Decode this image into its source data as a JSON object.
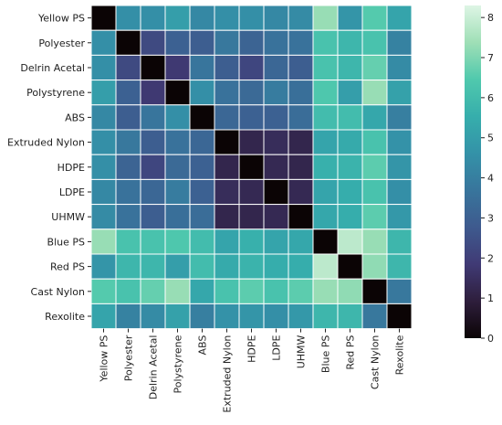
{
  "chart_data": {
    "type": "heatmap",
    "title": "",
    "row_labels": [
      "Yellow PS",
      "Polyester",
      "Delrin Acetal",
      "Polystyrene",
      "ABS",
      "Extruded Nylon",
      "HDPE",
      "LDPE",
      "UHMW",
      "Blue PS",
      "Red PS",
      "Cast Nylon",
      "Rexolite"
    ],
    "col_labels": [
      "Yellow PS",
      "Polyester",
      "Delrin Acetal",
      "Polystyrene",
      "ABS",
      "Extruded Nylon",
      "HDPE",
      "LDPE",
      "UHMW",
      "Blue PS",
      "Red PS",
      "Cast Nylon",
      "Rexolite"
    ],
    "values": [
      [
        0.0,
        4.5,
        4.5,
        5.0,
        4.3,
        4.5,
        4.5,
        4.3,
        4.4,
        7.3,
        4.7,
        6.5,
        5.2
      ],
      [
        4.5,
        0.0,
        2.3,
        3.0,
        2.9,
        3.8,
        3.1,
        3.6,
        3.6,
        6.2,
        5.8,
        6.2,
        4.1
      ],
      [
        4.5,
        2.3,
        0.0,
        1.8,
        3.7,
        2.9,
        2.2,
        3.2,
        2.9,
        6.2,
        5.8,
        6.7,
        4.4
      ],
      [
        5.0,
        3.0,
        1.8,
        0.0,
        4.5,
        3.6,
        3.3,
        3.9,
        3.5,
        6.4,
        5.0,
        7.3,
        5.1
      ],
      [
        4.3,
        2.9,
        3.7,
        4.5,
        0.0,
        3.2,
        3.0,
        3.0,
        3.4,
        6.0,
        6.0,
        5.3,
        4.0
      ],
      [
        4.5,
        3.8,
        2.9,
        3.6,
        3.2,
        0.0,
        1.2,
        1.4,
        1.2,
        5.2,
        5.4,
        6.2,
        4.6
      ],
      [
        4.5,
        3.1,
        2.2,
        3.3,
        3.0,
        1.2,
        0.0,
        1.3,
        1.2,
        5.6,
        5.7,
        6.6,
        4.7
      ],
      [
        4.3,
        3.6,
        3.2,
        3.9,
        3.0,
        1.4,
        1.3,
        0.0,
        1.3,
        5.2,
        5.5,
        6.2,
        4.5
      ],
      [
        4.4,
        3.6,
        2.9,
        3.5,
        3.4,
        1.2,
        1.2,
        1.3,
        0.0,
        5.3,
        5.5,
        6.6,
        4.8
      ],
      [
        7.3,
        6.2,
        6.2,
        6.4,
        6.0,
        5.2,
        5.6,
        5.2,
        5.3,
        0.0,
        7.8,
        7.3,
        5.8
      ],
      [
        4.7,
        5.8,
        5.8,
        5.0,
        6.0,
        5.4,
        5.7,
        5.5,
        5.5,
        7.8,
        0.0,
        7.2,
        5.8
      ],
      [
        6.5,
        6.2,
        6.7,
        7.3,
        5.3,
        6.2,
        6.6,
        6.2,
        6.6,
        7.3,
        7.2,
        0.0,
        3.8
      ],
      [
        5.2,
        4.1,
        4.4,
        5.1,
        4.0,
        4.6,
        4.7,
        4.5,
        4.8,
        5.8,
        5.8,
        3.8,
        0.0
      ]
    ],
    "vmin": 0,
    "vmax": 8.3,
    "colorbar_ticks": [
      0,
      1,
      2,
      3,
      4,
      5,
      6,
      7,
      8
    ],
    "colormap": "mako",
    "colormap_stops": [
      "#0b0405",
      "#2e1e3c",
      "#403a75",
      "#3e5a8e",
      "#38759c",
      "#3492a8",
      "#36aeac",
      "#50c9ad",
      "#9fdfb6",
      "#def5e5"
    ],
    "grid_line_color": "#ffffff"
  }
}
